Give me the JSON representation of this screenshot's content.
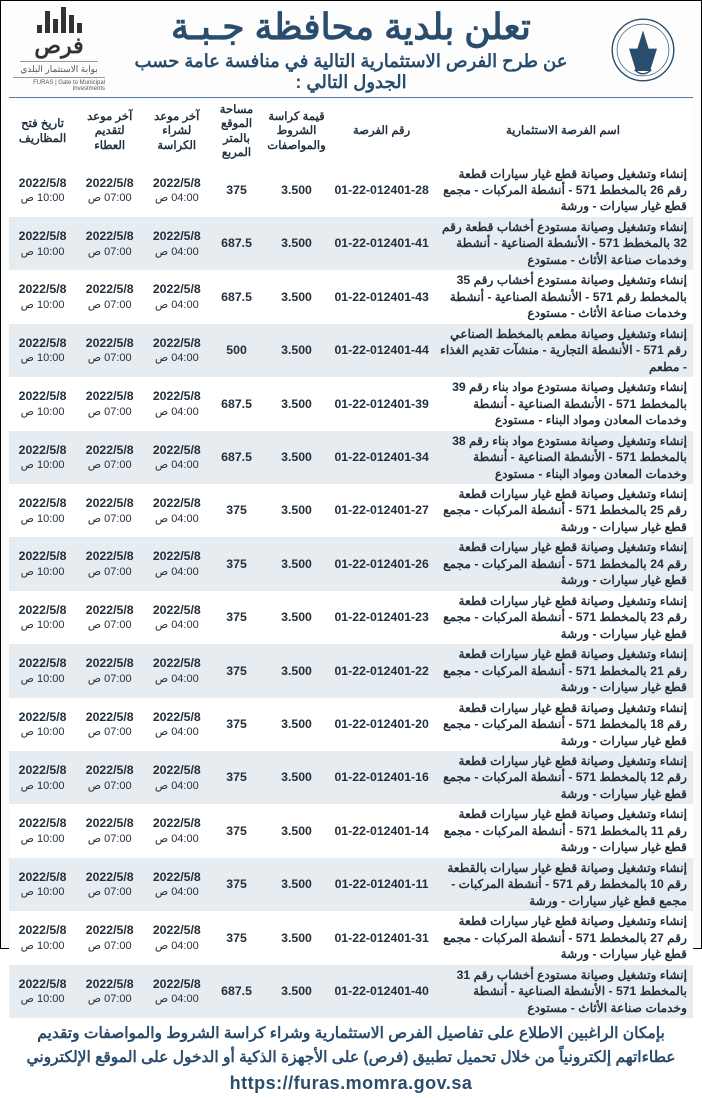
{
  "header": {
    "title_main": "تعلن بلدية محافظة جـبـة",
    "title_sub": "عن طرح الفرص الاستثمارية التالية في منافسة عامة حسب الجدول التالي :",
    "left_logo_word": "فرص",
    "left_logo_sub1": "بوابة الاستثمار البلدي",
    "left_logo_sub2": "FURAS | Gate to Municipal Investments"
  },
  "columns": {
    "c0": "اسم الفرصة الاستثمارية",
    "c1": "رقم الفرصة",
    "c2": "قيمة كراسة الشروط والمواصفات",
    "c3": "مساحة الموقع بالمتر المربع",
    "c4": "آخر موعد لشراء الكراسة",
    "c5": "آخر موعد لتقديم العطاء",
    "c6": "تاريخ فتح المظاريف"
  },
  "dates": {
    "d": "2022/5/8",
    "t1": "04:00 ص",
    "t2": "07:00 ص",
    "t3": "10:00 ص"
  },
  "price": "3.500",
  "rows": [
    {
      "desc": "إنشاء وتشغيل وصيانة قطع غيار سيارات قطعة رقم 26 بالمخطط 571 - أنشطة المركبات - مجمع قطع غيار سيارات - ورشة",
      "code": "01-22-012401-28",
      "area": "375"
    },
    {
      "desc": "إنشاء وتشغيل وصيانة مستودع أخشاب قطعة رقم 32 بالمخطط 571 - الأنشطة الصناعية - أنشطة وخدمات صناعة الأثاث - مستودع",
      "code": "01-22-012401-41",
      "area": "687.5"
    },
    {
      "desc": "إنشاء وتشغيل وصيانة مستودع أخشاب رقم 35 بالمخطط رقم 571 - الأنشطة الصناعية - أنشطة وخدمات صناعة الأثاث - مستودع",
      "code": "01-22-012401-43",
      "area": "687.5"
    },
    {
      "desc": "إنشاء وتشغيل وصيانة مطعم بالمخطط الصناعي رقم 571 - الأنشطة التجارية - منشآت تقديم الغذاء - مطعم",
      "code": "01-22-012401-44",
      "area": "500"
    },
    {
      "desc": "إنشاء وتشغيل وصيانة مستودع مواد بناء رقم 39 بالمخطط 571 - الأنشطة الصناعية - أنشطة وخدمات المعادن ومواد البناء - مستودع",
      "code": "01-22-012401-39",
      "area": "687.5"
    },
    {
      "desc": "إنشاء وتشغيل وصيانة مستودع مواد بناء رقم 38 بالمخطط 571 - الأنشطة الصناعية - أنشطة وخدمات المعادن ومواد البناء - مستودع",
      "code": "01-22-012401-34",
      "area": "687.5"
    },
    {
      "desc": "إنشاء وتشغيل وصيانة قطع غيار سيارات قطعة رقم 25 بالمخطط 571 - أنشطة المركبات - مجمع قطع غيار سيارات - ورشة",
      "code": "01-22-012401-27",
      "area": "375"
    },
    {
      "desc": "إنشاء وتشغيل وصيانة قطع غيار سيارات قطعة رقم 24 بالمخطط 571 - أنشطة المركبات - مجمع قطع غيار سيارات - ورشة",
      "code": "01-22-012401-26",
      "area": "375"
    },
    {
      "desc": "إنشاء وتشغيل وصيانة قطع غيار سيارات قطعة رقم 23 بالمخطط 571 - أنشطة المركبات - مجمع قطع غيار سيارات - ورشة",
      "code": "01-22-012401-23",
      "area": "375"
    },
    {
      "desc": "إنشاء وتشغيل وصيانة قطع غيار سيارات قطعة رقم 21 بالمخطط 571 - أنشطة المركبات - مجمع قطع غيار سيارات - ورشة",
      "code": "01-22-012401-22",
      "area": "375"
    },
    {
      "desc": "إنشاء وتشغيل وصيانة قطع غيار سيارات قطعة رقم 18 بالمخطط 571 - أنشطة المركبات - مجمع قطع غيار سيارات - ورشة",
      "code": "01-22-012401-20",
      "area": "375"
    },
    {
      "desc": "إنشاء وتشغيل وصيانة قطع غيار سيارات قطعة رقم 12 بالمخطط 571 - أنشطة المركبات - مجمع قطع غيار سيارات - ورشة",
      "code": "01-22-012401-16",
      "area": "375"
    },
    {
      "desc": "إنشاء وتشغيل وصيانة قطع غيار سيارات قطعة رقم 11 بالمخطط 571 - أنشطة المركبات - مجمع قطع غيار سيارات - ورشة",
      "code": "01-22-012401-14",
      "area": "375"
    },
    {
      "desc": "إنشاء وتشغيل وصيانة قطع غيار سيارات بالقطعة رقم 10 بالمخطط رقم 571 - أنشطة المركبات - مجمع قطع غيار سيارات - ورشة",
      "code": "01-22-012401-11",
      "area": "375"
    },
    {
      "desc": "إنشاء وتشغيل وصيانة قطع غيار سيارات قطعة رقم 27 بالمخطط 571 - أنشطة المركبات - مجمع قطع غيار سيارات - ورشة",
      "code": "01-22-012401-31",
      "area": "375"
    },
    {
      "desc": "إنشاء وتشغيل وصيانة مستودع أخشاب رقم 31 بالمخطط 571 - الأنشطة الصناعية - أنشطة وخدمات صناعة الأثاث - مستودع",
      "code": "01-22-012401-40",
      "area": "687.5"
    }
  ],
  "footer": {
    "line1": "بإمكان الراغبين الاطلاع على تفاصيل الفرص الاستثمارية وشراء كراسة الشروط والمواصفات وتقديم",
    "line2": "عطاءاتهم إلكترونياً من خلال تحميل تطبيق (فرص) على الأجهزة الذكية أو الدخول على الموقع الإلكتروني",
    "url": "https://furas.momra.gov.sa"
  },
  "style": {
    "accent": "#2a4d6e",
    "row_alt": "#e6ecef"
  }
}
